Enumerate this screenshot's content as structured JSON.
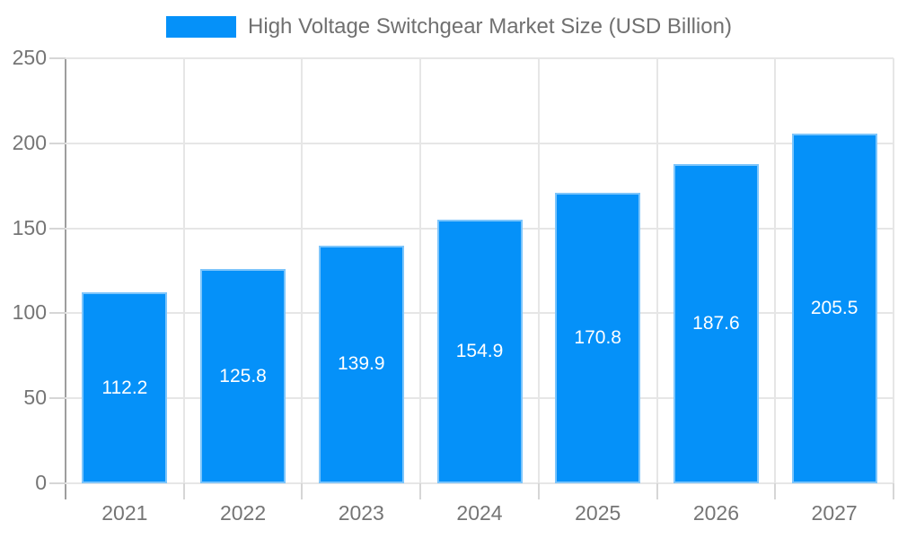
{
  "chart_data": {
    "type": "bar",
    "title": "High Voltage Switchgear Market Size (USD Billion)",
    "categories": [
      "2021",
      "2022",
      "2023",
      "2024",
      "2025",
      "2026",
      "2027"
    ],
    "values": [
      112.2,
      125.8,
      139.9,
      154.9,
      170.8,
      187.6,
      205.5
    ],
    "series_name": "High Voltage Switchgear Market Size (USD Billion)",
    "xlabel": "",
    "ylabel": "",
    "ylim": [
      0,
      250
    ],
    "yticks": [
      0,
      50,
      100,
      150,
      200,
      250
    ],
    "ytick_step": 50,
    "grid": "both",
    "legend_position": "top-center",
    "value_labels": "inside-center"
  },
  "colors": {
    "bar": "#0591f9",
    "bar_edge": "#7dc5fb",
    "grid": "#e6e6e6",
    "tick": "#d6d6d6",
    "axis_line": "#9e9e9e",
    "tick_label": "#757575",
    "legend_text": "#707070",
    "value_label": "#ffffff",
    "background": "#ffffff"
  }
}
